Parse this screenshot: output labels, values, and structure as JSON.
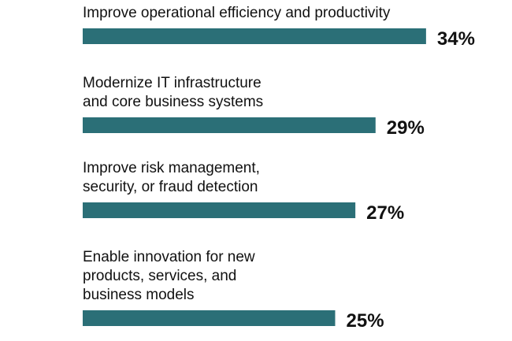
{
  "chart_data": {
    "type": "bar",
    "orientation": "horizontal",
    "categories": [
      "Improve operational efficiency and productivity",
      "Modernize IT infrastructure and core business systems",
      "Improve risk management, security, or fraud detection",
      "Enable innovation for new products, services, and business models"
    ],
    "category_lines": [
      [
        "Improve operational efficiency and productivity"
      ],
      [
        "Modernize IT infrastructure",
        "and core business systems"
      ],
      [
        "Improve risk management,",
        "security, or fraud detection"
      ],
      [
        "Enable innovation for new",
        "products, services, and",
        "business models"
      ]
    ],
    "values": [
      34,
      29,
      27,
      25
    ],
    "value_labels": [
      "34%",
      "29%",
      "27%",
      "25%"
    ],
    "unit": "%",
    "bar_color": "#2b6f77",
    "text_color": "#111111",
    "title": "",
    "xlabel": "",
    "ylabel": "",
    "grid": false,
    "legend": "none"
  }
}
